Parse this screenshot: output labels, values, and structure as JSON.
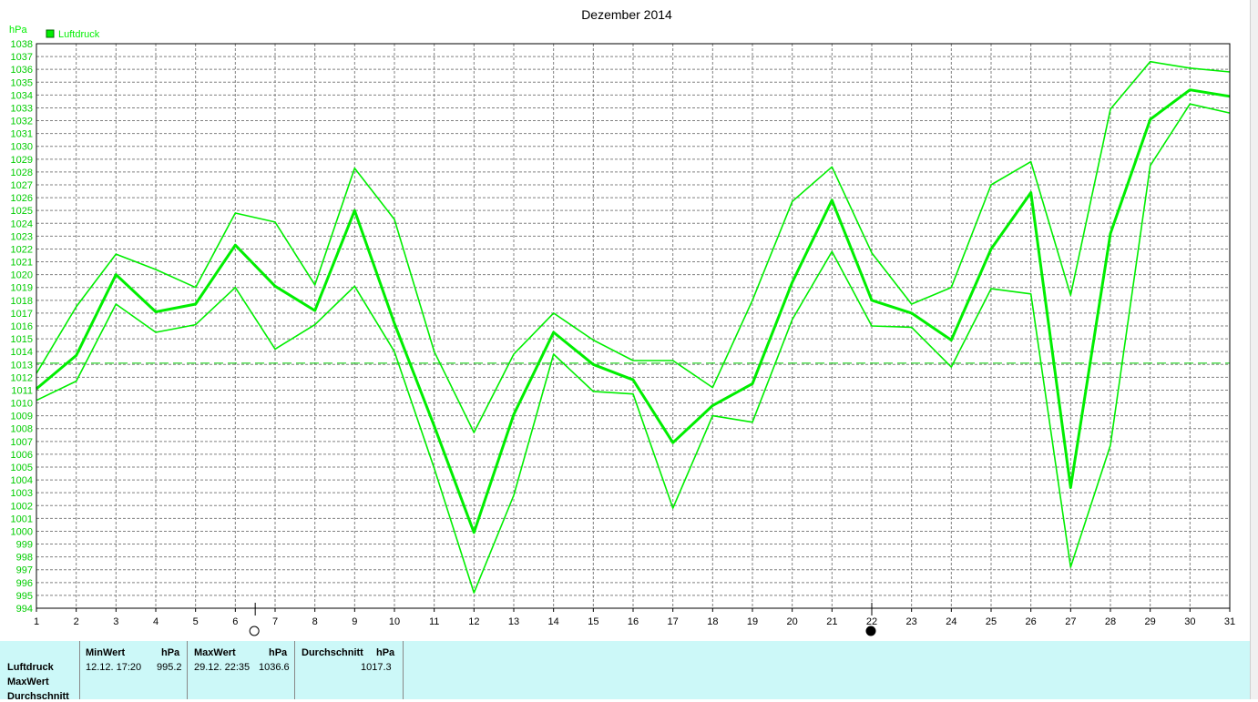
{
  "chart_data": {
    "type": "line",
    "title": "Dezember 2014",
    "ylabel": "hPa",
    "legend": "Luftdruck",
    "legend_color": "#00cc00",
    "ylim": [
      994,
      1038
    ],
    "yticks": [
      994,
      995,
      996,
      997,
      998,
      999,
      1000,
      1001,
      1002,
      1003,
      1004,
      1005,
      1006,
      1007,
      1008,
      1009,
      1010,
      1011,
      1012,
      1013,
      1014,
      1015,
      1016,
      1017,
      1018,
      1019,
      1020,
      1021,
      1022,
      1023,
      1024,
      1025,
      1026,
      1027,
      1028,
      1029,
      1030,
      1031,
      1032,
      1033,
      1034,
      1035,
      1036,
      1037,
      1038
    ],
    "x": [
      1,
      2,
      3,
      4,
      5,
      6,
      7,
      8,
      9,
      10,
      11,
      12,
      13,
      14,
      15,
      16,
      17,
      18,
      19,
      20,
      21,
      22,
      23,
      24,
      25,
      26,
      27,
      28,
      29,
      30,
      31
    ],
    "series": [
      {
        "name": "MaxWert",
        "style": "thin",
        "values": [
          1012.3,
          1017.5,
          1021.6,
          1020.4,
          1019.0,
          1024.8,
          1024.1,
          1019.2,
          1028.3,
          1024.3,
          1014.0,
          1007.7,
          1013.8,
          1017.0,
          1014.9,
          1013.3,
          1013.3,
          1011.2,
          1018.0,
          1025.7,
          1028.4,
          1021.7,
          1017.7,
          1019.0,
          1027.0,
          1028.8,
          1018.4,
          1032.9,
          1036.6,
          1036.1,
          1035.8
        ]
      },
      {
        "name": "Luftdruck",
        "style": "thick",
        "values": [
          1011.1,
          1013.7,
          1020.0,
          1017.1,
          1017.7,
          1022.3,
          1019.1,
          1017.2,
          1025.0,
          1016.2,
          1008.2,
          999.9,
          1009.1,
          1015.5,
          1013.0,
          1011.8,
          1006.9,
          1009.8,
          1011.5,
          1019.4,
          1025.8,
          1018.0,
          1017.0,
          1014.9,
          1022.0,
          1026.4,
          1003.4,
          1023.2,
          1032.1,
          1034.4,
          1033.9
        ]
      },
      {
        "name": "MinWert",
        "style": "thin",
        "values": [
          1010.2,
          1011.7,
          1017.7,
          1015.5,
          1016.1,
          1019.0,
          1014.2,
          1016.1,
          1019.1,
          1014.0,
          1004.9,
          995.2,
          1002.8,
          1013.8,
          1010.9,
          1010.7,
          1001.8,
          1009.0,
          1008.5,
          1016.5,
          1021.8,
          1016.0,
          1015.9,
          1012.8,
          1018.9,
          1018.5,
          997.2,
          1006.7,
          1028.5,
          1033.3,
          1032.6
        ]
      }
    ],
    "average_line": 1013.1,
    "markers": [
      {
        "x": 6.5,
        "type": "full-moon"
      },
      {
        "x": 22,
        "type": "new-moon"
      }
    ]
  },
  "stats": {
    "rows": [
      "Luftdruck",
      "MaxWert",
      "Durchschnitt"
    ],
    "min_label": "MinWert",
    "min_unit": "hPa",
    "min_time": "12.12.  17:20",
    "min_value": "995.2",
    "max_label": "MaxWert",
    "max_unit": "hPa",
    "max_time": "29.12.  22:35",
    "max_value": "1036.6",
    "avg_label": "Durchschnitt",
    "avg_unit": "hPa",
    "avg_value": "1017.3"
  }
}
